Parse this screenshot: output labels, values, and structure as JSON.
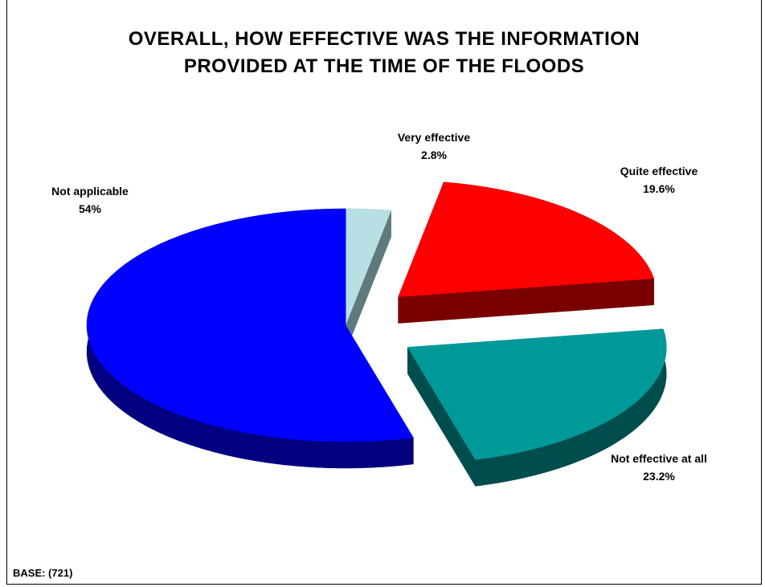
{
  "chart_data": {
    "type": "pie",
    "title_lines": [
      "OVERALL, HOW EFFECTIVE WAS THE INFORMATION",
      "PROVIDED AT THE TIME OF THE FLOODS"
    ],
    "slices": [
      {
        "label": "Very effective",
        "value": 2.8,
        "value_label": "2.8%",
        "color": "#b8e0e4",
        "side_color": "#5f7a7c"
      },
      {
        "label": "Quite effective",
        "value": 19.6,
        "value_label": "19.6%",
        "color": "#ff0000",
        "side_color": "#7a0000"
      },
      {
        "label": "Not effective at all",
        "value": 23.2,
        "value_label": "23.2%",
        "color": "#009999",
        "side_color": "#004d4d"
      },
      {
        "label": "Not applicable",
        "value": 54,
        "value_label": "54%",
        "color": "#0000ff",
        "side_color": "#000080"
      }
    ],
    "style": "3d-exploded",
    "footnote": "BASE: (721)"
  }
}
